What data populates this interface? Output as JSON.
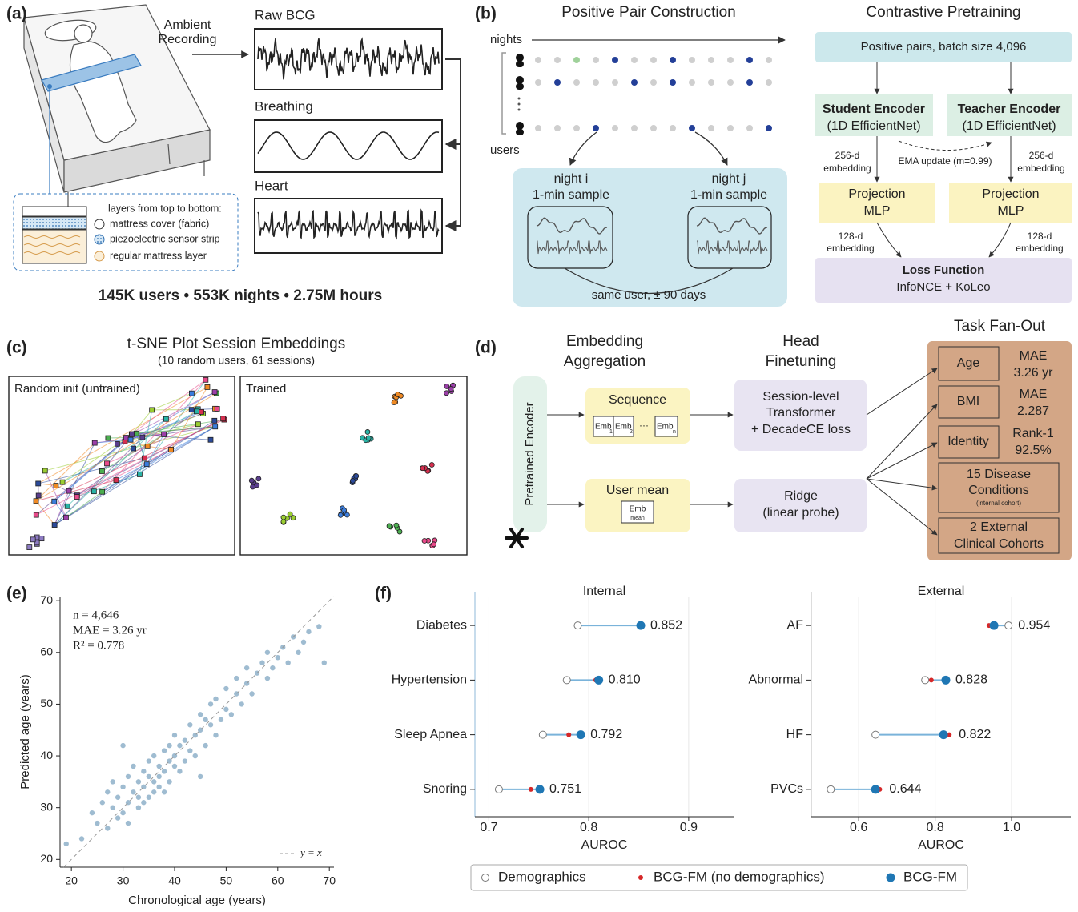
{
  "a": {
    "label": "(a)",
    "arrow_text": [
      "Ambient",
      "Recording"
    ],
    "signals": [
      "Raw BCG",
      "Breathing",
      "Heart"
    ],
    "layers_title": "layers from top to bottom:",
    "layers": [
      "mattress cover (fabric)",
      "piezoelectric sensor strip",
      "regular mattress layer"
    ],
    "stats": "145K users • 553K nights • 2.75M hours"
  },
  "b": {
    "label": "(b)",
    "title_left": "Positive Pair Construction",
    "nights": "nights",
    "users": "users",
    "night_i": [
      "night i",
      "1-min sample"
    ],
    "night_j": [
      "night j",
      "1-min sample"
    ],
    "same_user": "same user, ± 90 days",
    "title_right": "Contrastive Pretraining",
    "pairs": "Positive pairs, batch size 4,096",
    "student": [
      "Student Encoder",
      "(1D EfficientNet)"
    ],
    "teacher": [
      "Teacher Encoder",
      "(1D EfficientNet)"
    ],
    "emb256_left": [
      "256-d",
      "embedding"
    ],
    "emb256_right": [
      "256-d",
      "embedding"
    ],
    "ema": "EMA update (m=0.99)",
    "proj_left": [
      "Projection",
      "MLP"
    ],
    "proj_right": [
      "Projection",
      "MLP"
    ],
    "emb128_left": [
      "128-d",
      "embedding"
    ],
    "emb128_right": [
      "128-d",
      "embedding"
    ],
    "loss": [
      "Loss Function",
      "InfoNCE + KoLeo"
    ]
  },
  "c": {
    "label": "(c)",
    "title": "t-SNE Plot Session Embeddings",
    "subtitle": "(10 random users, 61 sessions)",
    "left": "Random init (untrained)",
    "right": "Trained"
  },
  "d": {
    "label": "(d)",
    "col1": [
      "Embedding",
      "Aggregation"
    ],
    "col2": [
      "Head",
      "Finetuning"
    ],
    "col3": "Task Fan-Out",
    "encoder": "Pretrained Encoder",
    "sequence": "Sequence",
    "emb": "Emb",
    "subs": [
      "1",
      "2",
      "n"
    ],
    "ellipsis": "···",
    "user_mean": "User mean",
    "mean_sub": "mean",
    "transformer": [
      "Session-level",
      "Transformer",
      "+ DecadeCE loss"
    ],
    "ridge": [
      "Ridge",
      "(linear probe)"
    ],
    "tasks": [
      {
        "name": "Age",
        "metric": "MAE",
        "value": "3.26 yr"
      },
      {
        "name": "BMI",
        "metric": "MAE",
        "value": "2.287"
      },
      {
        "name": "Identity",
        "metric": "Rank-1",
        "value": "92.5%"
      }
    ],
    "disease": [
      "15 Disease",
      "Conditions",
      "(internal cohort)"
    ],
    "external": [
      "2 External",
      "Clinical Cohorts"
    ]
  },
  "e": {
    "label": "(e)"
  },
  "f": {
    "label": "(f)"
  },
  "chart_data": [
    {
      "type": "scatter",
      "xlabel": "Chronological age (years)",
      "ylabel": "Predicted age (years)",
      "annotations": [
        "n = 4,646",
        "MAE = 3.26 yr",
        "R² = 0.778"
      ],
      "reference_line_label": "y = x",
      "color": "#2a6a9a",
      "xlim": [
        17.8,
        70.9
      ],
      "ylim": [
        18.5,
        70.8
      ],
      "xticks": [
        20,
        30,
        40,
        50,
        60,
        70
      ],
      "yticks": [
        20,
        30,
        40,
        50,
        60,
        70
      ],
      "x": [
        22,
        24,
        25,
        26,
        27,
        27,
        28,
        28,
        29,
        29,
        30,
        30,
        31,
        31,
        31,
        32,
        32,
        33,
        33,
        33,
        34,
        34,
        34,
        35,
        35,
        35,
        36,
        36,
        36,
        37,
        37,
        37,
        38,
        38,
        38,
        39,
        39,
        39,
        40,
        40,
        40,
        41,
        41,
        42,
        42,
        43,
        43,
        44,
        44,
        45,
        45,
        46,
        46,
        47,
        47,
        48,
        48,
        49,
        50,
        50,
        51,
        52,
        52,
        53,
        54,
        54,
        55,
        56,
        57,
        58,
        58,
        59,
        60,
        61,
        62,
        63,
        64,
        65,
        66,
        68,
        19,
        69,
        45,
        30
      ],
      "y": [
        24,
        29,
        27,
        31,
        33,
        26,
        30,
        35,
        28,
        32,
        34,
        29,
        31,
        36,
        27,
        33,
        38,
        30,
        35,
        32,
        37,
        31,
        34,
        36,
        32,
        39,
        35,
        33,
        40,
        38,
        34,
        36,
        37,
        41,
        33,
        39,
        35,
        42,
        40,
        38,
        44,
        37,
        42,
        39,
        43,
        41,
        46,
        40,
        44,
        45,
        48,
        42,
        47,
        46,
        50,
        44,
        51,
        47,
        49,
        53,
        48,
        52,
        55,
        50,
        54,
        57,
        52,
        56,
        58,
        55,
        60,
        57,
        59,
        61,
        58,
        63,
        60,
        62,
        64,
        65,
        23,
        58,
        36,
        42
      ]
    },
    {
      "type": "dot",
      "title": "Internal",
      "xlabel": "AUROC",
      "grid": true,
      "connector_color": "#7ab3da",
      "categories": [
        "Diabetes",
        "Hypertension",
        "Sleep Apnea",
        "Snoring"
      ],
      "xlim": [
        0.686,
        0.945
      ],
      "xticks": [
        0.7,
        0.8,
        0.9
      ],
      "series": [
        {
          "name": "Demographics",
          "color": "#777777",
          "marker": "hollow",
          "values": [
            0.789,
            0.778,
            0.754,
            0.71
          ]
        },
        {
          "name": "BCG-FM (no demographics)",
          "color": "#d62728",
          "marker": "dot",
          "values": [
            0.852,
            0.807,
            0.78,
            0.742
          ]
        },
        {
          "name": "BCG-FM",
          "color": "#1f77b4",
          "marker": "circle",
          "values": [
            0.852,
            0.81,
            0.792,
            0.751
          ],
          "value_labels": [
            "0.852",
            "0.810",
            "0.792",
            "0.751"
          ]
        }
      ]
    },
    {
      "type": "dot",
      "title": "External",
      "xlabel": "AUROC",
      "grid": true,
      "connector_color": "#7ab3da",
      "categories": [
        "AF",
        "Abnormal",
        "HF",
        "PVCs"
      ],
      "xlim": [
        0.476,
        1.155
      ],
      "xticks": [
        0.6,
        0.8,
        {
          "value": 1,
          "label": "1.0"
        }
      ],
      "series": [
        {
          "name": "Demographics",
          "color": "#777777",
          "marker": "hollow",
          "values": [
            0.992,
            0.774,
            0.644,
            0.527
          ]
        },
        {
          "name": "BCG-FM (no demographics)",
          "color": "#d62728",
          "marker": "dot",
          "values": [
            0.941,
            0.79,
            0.837,
            0.655
          ]
        },
        {
          "name": "BCG-FM",
          "color": "#1f77b4",
          "marker": "circle",
          "values": [
            0.954,
            0.828,
            0.822,
            0.644
          ],
          "value_labels": [
            "0.954",
            "0.828",
            "0.822",
            "0.644"
          ]
        }
      ]
    }
  ]
}
